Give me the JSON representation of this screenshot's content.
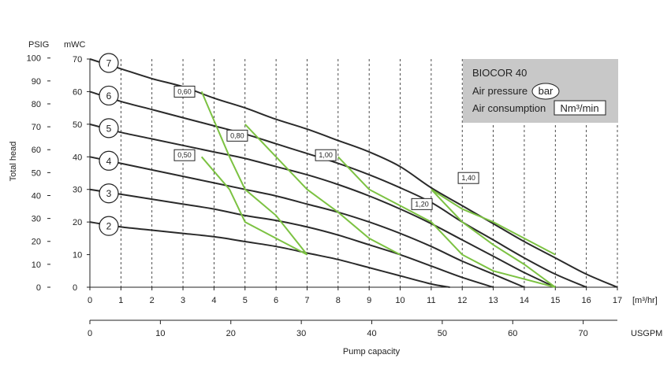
{
  "chart_data": {
    "type": "line",
    "legend": {
      "title": "BIOCOR 40",
      "air_pressure_label": "Air pressure",
      "air_pressure_unit": "bar",
      "air_consumption_label": "Air consumption",
      "air_consumption_unit": "Nm³/min",
      "bg_color": "#c8c8c8",
      "placement": "top-right"
    },
    "axes": {
      "x_top_unit": "[m³/hr]",
      "x_bottom_unit": "USGPM",
      "xlabel": "Pump capacity",
      "ylabel": "Total head",
      "y_left_unit": "PSIG",
      "y_right_unit": "mWC",
      "x_m3hr_ticks": [
        "0",
        "1",
        "2",
        "3",
        "4",
        "5",
        "6",
        "7",
        "8",
        "9",
        "10",
        "11",
        "12",
        "13",
        "14",
        "15",
        "16",
        "17"
      ],
      "x_usgpm_ticks": [
        "0",
        "10",
        "20",
        "30",
        "40",
        "50",
        "60",
        "70"
      ],
      "y_psig_ticks": [
        "0",
        "10",
        "20",
        "30",
        "40",
        "50",
        "60",
        "70",
        "80",
        "90",
        "100"
      ],
      "y_mwc_ticks": [
        "0",
        "10",
        "20",
        "30",
        "40",
        "50",
        "60",
        "70"
      ],
      "xlim": [
        0,
        17
      ],
      "ylim_mwc": [
        0,
        70
      ],
      "grid": true
    },
    "series_line_color": "#2a2a2a",
    "air_line_color": "#7cc242",
    "series": [
      {
        "name": "7",
        "points": [
          [
            0,
            70
          ],
          [
            1,
            67
          ],
          [
            2,
            64
          ],
          [
            3,
            61.5
          ],
          [
            4,
            58
          ],
          [
            5,
            55
          ],
          [
            6,
            51.5
          ],
          [
            7,
            48.5
          ],
          [
            8,
            45
          ],
          [
            9,
            41.5
          ],
          [
            10,
            37
          ],
          [
            11,
            30.5
          ],
          [
            12,
            25
          ],
          [
            13,
            19.5
          ],
          [
            14,
            14
          ],
          [
            15,
            9
          ],
          [
            16,
            4
          ],
          [
            17,
            0
          ]
        ]
      },
      {
        "name": "6",
        "points": [
          [
            0,
            60
          ],
          [
            1,
            57
          ],
          [
            2,
            54.5
          ],
          [
            3,
            52
          ],
          [
            4,
            49.5
          ],
          [
            5,
            47
          ],
          [
            6,
            44
          ],
          [
            7,
            41
          ],
          [
            8,
            38
          ],
          [
            9,
            34.5
          ],
          [
            10,
            30.5
          ],
          [
            11,
            26
          ],
          [
            12,
            20
          ],
          [
            13,
            14.5
          ],
          [
            14,
            9
          ],
          [
            15,
            4
          ],
          [
            16,
            0
          ]
        ]
      },
      {
        "name": "5",
        "points": [
          [
            0,
            50
          ],
          [
            1,
            47.5
          ],
          [
            2,
            45.5
          ],
          [
            3,
            43.5
          ],
          [
            4,
            41.5
          ],
          [
            5,
            39.5
          ],
          [
            6,
            37
          ],
          [
            7,
            34.5
          ],
          [
            8,
            31.5
          ],
          [
            9,
            28
          ],
          [
            10,
            24
          ],
          [
            11,
            19.5
          ],
          [
            12,
            14.5
          ],
          [
            13,
            9.5
          ],
          [
            14,
            4.5
          ],
          [
            15,
            0
          ]
        ]
      },
      {
        "name": "4",
        "points": [
          [
            0,
            40
          ],
          [
            1,
            38
          ],
          [
            2,
            36
          ],
          [
            3,
            34
          ],
          [
            4,
            32
          ],
          [
            5,
            30
          ],
          [
            6,
            28
          ],
          [
            7,
            25.5
          ],
          [
            8,
            23
          ],
          [
            9,
            20
          ],
          [
            10,
            16.5
          ],
          [
            11,
            12.5
          ],
          [
            12,
            8
          ],
          [
            13,
            4
          ],
          [
            14,
            0
          ]
        ]
      },
      {
        "name": "3",
        "points": [
          [
            0,
            30
          ],
          [
            1,
            28.5
          ],
          [
            2,
            27
          ],
          [
            3,
            25.5
          ],
          [
            4,
            24
          ],
          [
            5,
            22
          ],
          [
            6,
            20.5
          ],
          [
            7,
            18.5
          ],
          [
            8,
            16
          ],
          [
            9,
            13
          ],
          [
            10,
            10
          ],
          [
            11,
            6.5
          ],
          [
            12,
            3
          ],
          [
            13,
            0
          ]
        ]
      },
      {
        "name": "2",
        "points": [
          [
            0,
            20
          ],
          [
            1,
            18.5
          ],
          [
            2,
            17.5
          ],
          [
            3,
            16.5
          ],
          [
            4,
            15.5
          ],
          [
            5,
            14
          ],
          [
            6,
            12.5
          ],
          [
            7,
            10.5
          ],
          [
            8,
            8.5
          ],
          [
            9,
            6
          ],
          [
            10,
            3.5
          ],
          [
            11,
            1
          ],
          [
            11.6,
            0
          ]
        ]
      }
    ],
    "air_consumption": [
      {
        "label": "0,50",
        "points": [
          [
            3.6,
            40
          ],
          [
            4.5,
            30
          ],
          [
            5,
            20
          ],
          [
            6,
            15
          ],
          [
            7,
            10
          ]
        ]
      },
      {
        "label": "0,60",
        "points": [
          [
            3.6,
            60
          ],
          [
            4.5,
            40
          ],
          [
            5,
            30
          ],
          [
            6,
            22
          ],
          [
            7,
            10
          ]
        ]
      },
      {
        "label": "0,80",
        "points": [
          [
            5,
            50
          ],
          [
            6,
            40
          ],
          [
            7,
            30
          ],
          [
            8,
            23
          ],
          [
            9,
            15
          ],
          [
            10,
            10
          ]
        ]
      },
      {
        "label": "1,00",
        "points": [
          [
            8,
            40
          ],
          [
            9,
            30
          ],
          [
            10,
            25
          ],
          [
            11,
            20
          ],
          [
            12,
            10
          ],
          [
            13,
            5
          ],
          [
            15,
            0
          ]
        ]
      },
      {
        "label": "1,20",
        "points": [
          [
            11,
            30
          ],
          [
            12,
            20
          ],
          [
            13,
            13
          ],
          [
            14,
            7
          ],
          [
            15,
            0
          ]
        ]
      },
      {
        "label": "1,40",
        "points": [
          [
            11,
            30
          ],
          [
            12,
            24
          ],
          [
            13,
            20
          ],
          [
            14,
            15
          ],
          [
            15,
            10
          ]
        ]
      }
    ],
    "air_label_boxes": [
      {
        "label": "0,60",
        "x": 3.05,
        "y": 60
      },
      {
        "label": "0,80",
        "x": 4.75,
        "y": 46.5
      },
      {
        "label": "0,50",
        "x": 3.05,
        "y": 40.5
      },
      {
        "label": "1,00",
        "x": 7.6,
        "y": 40.5
      },
      {
        "label": "1,20",
        "x": 10.7,
        "y": 25.5
      },
      {
        "label": "1,40",
        "x": 12.2,
        "y": 33.5
      }
    ]
  }
}
